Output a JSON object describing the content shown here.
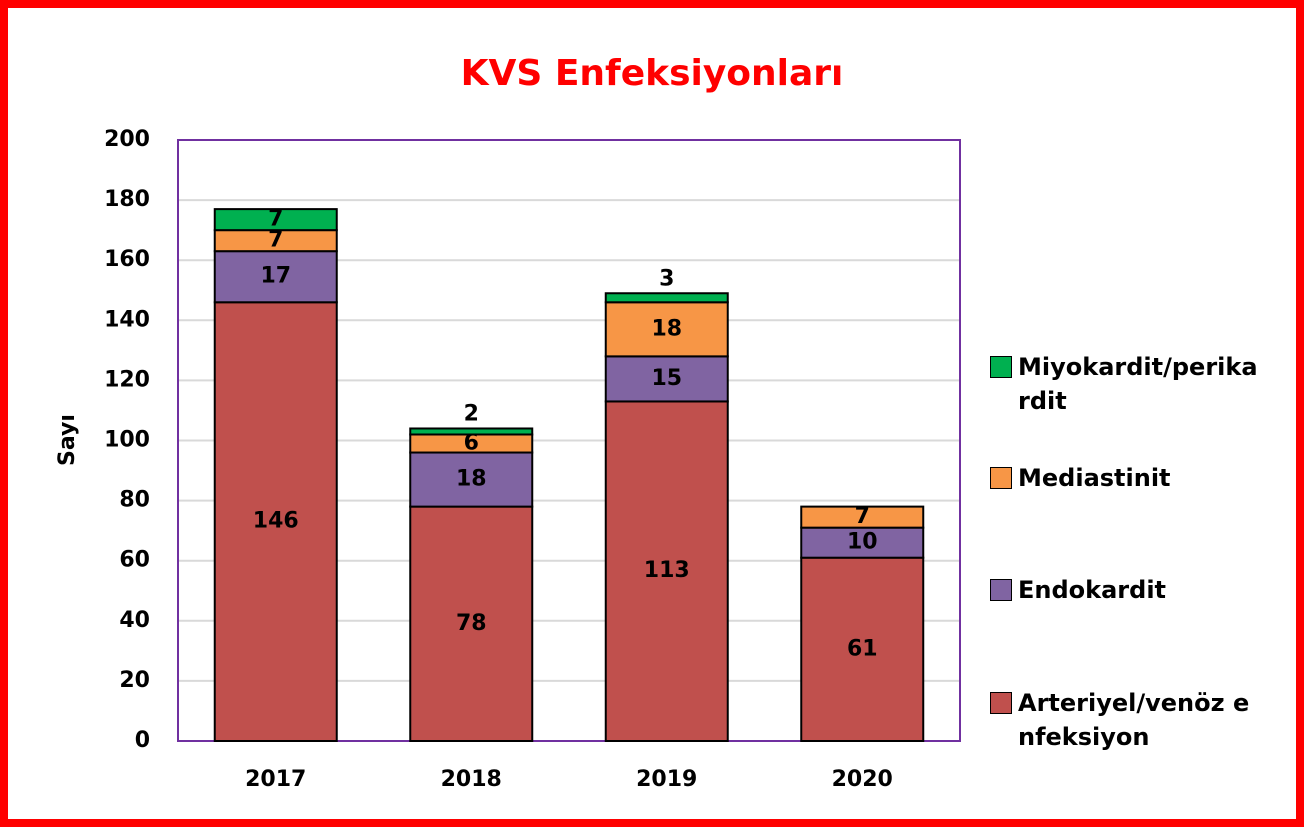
{
  "chart_data": {
    "type": "bar",
    "stacked": true,
    "title": "KVS Enfeksiyonları",
    "y_label": "Sayı",
    "categories": [
      "2017",
      "2018",
      "2019",
      "2020"
    ],
    "series": [
      {
        "name": "Arteriyel/venöz enfeksiyon",
        "color": "#c0504d",
        "values": [
          146,
          78,
          113,
          61
        ]
      },
      {
        "name": "Endokardit",
        "color": "#8064a2",
        "values": [
          17,
          18,
          15,
          10
        ]
      },
      {
        "name": "Mediastinit",
        "color": "#f79646",
        "values": [
          7,
          6,
          18,
          7
        ]
      },
      {
        "name": "Miyokardit/perikardit",
        "color": "#00b050",
        "values": [
          7,
          2,
          3,
          null
        ]
      }
    ],
    "ylim": [
      0,
      200
    ],
    "yticks": [
      0,
      20,
      40,
      60,
      80,
      100,
      120,
      140,
      160,
      180,
      200
    ],
    "grid": true,
    "legend": "right"
  }
}
